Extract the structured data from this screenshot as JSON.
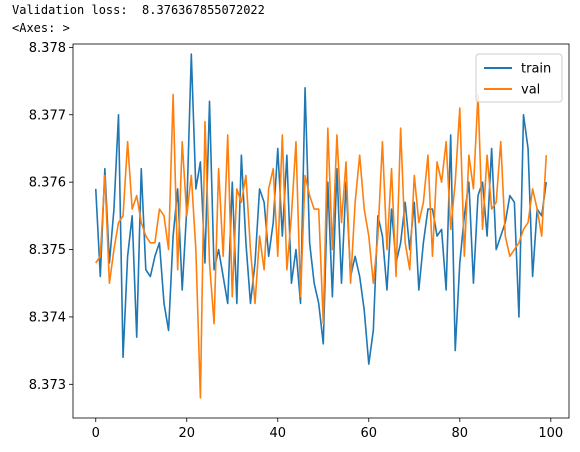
{
  "output": {
    "loss_line": "Validation loss:  8.376367855072022",
    "axes_repr": "<Axes: >"
  },
  "colors": {
    "train": "#1f77b4",
    "val": "#ff7f0e",
    "axes": "#000000"
  },
  "chart_data": {
    "type": "line",
    "title": "",
    "xlabel": "",
    "ylabel": "",
    "xlim": [
      -5,
      104
    ],
    "ylim": [
      8.3725,
      8.37805
    ],
    "xticks": [
      0,
      20,
      40,
      60,
      80,
      100
    ],
    "xtick_labels": [
      "0",
      "20",
      "40",
      "60",
      "80",
      "100"
    ],
    "yticks": [
      8.373,
      8.374,
      8.375,
      8.376,
      8.377,
      8.378
    ],
    "ytick_labels": [
      "8.373",
      "8.374",
      "8.375",
      "8.376",
      "8.377",
      "8.378"
    ],
    "grid": false,
    "legend_position": "upper right",
    "series": [
      {
        "name": "train",
        "color": "#1f77b4",
        "x": [
          0,
          1,
          2,
          3,
          4,
          5,
          6,
          7,
          8,
          9,
          10,
          11,
          12,
          13,
          14,
          15,
          16,
          17,
          18,
          19,
          20,
          21,
          22,
          23,
          24,
          25,
          26,
          27,
          28,
          29,
          30,
          31,
          32,
          33,
          34,
          35,
          36,
          37,
          38,
          39,
          40,
          41,
          42,
          43,
          44,
          45,
          46,
          47,
          48,
          49,
          50,
          51,
          52,
          53,
          54,
          55,
          56,
          57,
          58,
          59,
          60,
          61,
          62,
          63,
          64,
          65,
          66,
          67,
          68,
          69,
          70,
          71,
          72,
          73,
          74,
          75,
          76,
          77,
          78,
          79,
          80,
          81,
          82,
          83,
          84,
          85,
          86,
          87,
          88,
          89,
          90,
          91,
          92,
          93,
          94,
          95,
          96,
          97,
          98,
          99
        ],
        "y": [
          8.3759,
          8.3746,
          8.3762,
          8.3748,
          8.3756,
          8.377,
          8.3734,
          8.3749,
          8.3755,
          8.3737,
          8.3762,
          8.3747,
          8.3746,
          8.3749,
          8.3751,
          8.3742,
          8.3738,
          8.3752,
          8.3759,
          8.3744,
          8.3756,
          8.3779,
          8.3759,
          8.3763,
          8.3748,
          8.3772,
          8.3747,
          8.375,
          8.3746,
          8.3742,
          8.376,
          8.3742,
          8.3764,
          8.3751,
          8.3742,
          8.3748,
          8.3759,
          8.3757,
          8.3749,
          8.3754,
          8.3765,
          8.3752,
          8.3764,
          8.3745,
          8.375,
          8.3742,
          8.3774,
          8.3751,
          8.3745,
          8.3742,
          8.3736,
          8.376,
          8.3743,
          8.3762,
          8.3745,
          8.376,
          8.3746,
          8.3749,
          8.3746,
          8.3741,
          8.3733,
          8.3738,
          8.3755,
          8.3752,
          8.3744,
          8.3756,
          8.3748,
          8.3751,
          8.3757,
          8.375,
          8.3757,
          8.3744,
          8.3751,
          8.3756,
          8.3756,
          8.3752,
          8.3753,
          8.3744,
          8.3767,
          8.3735,
          8.3748,
          8.3755,
          8.376,
          8.3745,
          8.3758,
          8.376,
          8.3752,
          8.3765,
          8.375,
          8.3752,
          8.3754,
          8.3758,
          8.3757,
          8.374,
          8.377,
          8.3765,
          8.3746,
          8.3756,
          8.3755,
          8.376
        ]
      },
      {
        "name": "val",
        "color": "#ff7f0e",
        "x": [
          0,
          1,
          2,
          3,
          4,
          5,
          6,
          7,
          8,
          9,
          10,
          11,
          12,
          13,
          14,
          15,
          16,
          17,
          18,
          19,
          20,
          21,
          22,
          23,
          24,
          25,
          26,
          27,
          28,
          29,
          30,
          31,
          32,
          33,
          34,
          35,
          36,
          37,
          38,
          39,
          40,
          41,
          42,
          43,
          44,
          45,
          46,
          47,
          48,
          49,
          50,
          51,
          52,
          53,
          54,
          55,
          56,
          57,
          58,
          59,
          60,
          61,
          62,
          63,
          64,
          65,
          66,
          67,
          68,
          69,
          70,
          71,
          72,
          73,
          74,
          75,
          76,
          77,
          78,
          79,
          80,
          81,
          82,
          83,
          84,
          85,
          86,
          87,
          88,
          89,
          90,
          91,
          92,
          93,
          94,
          95,
          96,
          97,
          98,
          99
        ],
        "y": [
          8.3748,
          8.3749,
          8.3761,
          8.3745,
          8.375,
          8.3754,
          8.3755,
          8.3766,
          8.3756,
          8.3758,
          8.3754,
          8.3752,
          8.3751,
          8.3751,
          8.3756,
          8.3755,
          8.375,
          8.3773,
          8.3747,
          8.3766,
          8.3755,
          8.3761,
          8.375,
          8.3728,
          8.3769,
          8.3748,
          8.3739,
          8.3762,
          8.3749,
          8.3767,
          8.3743,
          8.3759,
          8.3757,
          8.3761,
          8.375,
          8.3742,
          8.3752,
          8.3747,
          8.3759,
          8.3762,
          8.3749,
          8.3767,
          8.3747,
          8.3755,
          8.3766,
          8.3743,
          8.3761,
          8.3758,
          8.3756,
          8.3756,
          8.3739,
          8.3768,
          8.375,
          8.3767,
          8.3754,
          8.3763,
          8.3745,
          8.3757,
          8.3764,
          8.3756,
          8.3752,
          8.3745,
          8.3752,
          8.3766,
          8.375,
          8.3762,
          8.3746,
          8.3768,
          8.3751,
          8.3747,
          8.3761,
          8.3754,
          8.3757,
          8.3764,
          8.3749,
          8.3763,
          8.376,
          8.3766,
          8.3753,
          8.376,
          8.3771,
          8.3749,
          8.3764,
          8.3759,
          8.3773,
          8.3753,
          8.3764,
          8.3756,
          8.3757,
          8.3766,
          8.3752,
          8.3749,
          8.375,
          8.3751,
          8.3753,
          8.3754,
          8.3759,
          8.3756,
          8.3752,
          8.3764
        ]
      }
    ]
  }
}
